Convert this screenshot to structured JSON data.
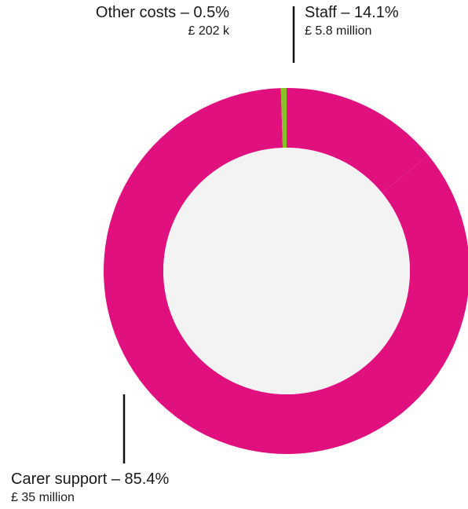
{
  "chart_data": {
    "type": "pie",
    "style": "donut",
    "colors_note": "segments colored magenta and green on light grey centre",
    "slices": [
      {
        "label": "Carer support",
        "percent": 85.4,
        "amount": "£ 35 million",
        "display": "Carer support – 85.4%",
        "color": "#e0107f"
      },
      {
        "label": "Staff",
        "percent": 14.1,
        "amount": "£ 5.8 million",
        "display": "Staff – 14.1%",
        "color": "#e0107f"
      },
      {
        "label": "Other costs",
        "percent": 0.5,
        "amount": "£ 202 k",
        "display": "Other costs – 0.5%",
        "color": "#8cbf26"
      }
    ],
    "center_color": "#f3f3f4"
  }
}
